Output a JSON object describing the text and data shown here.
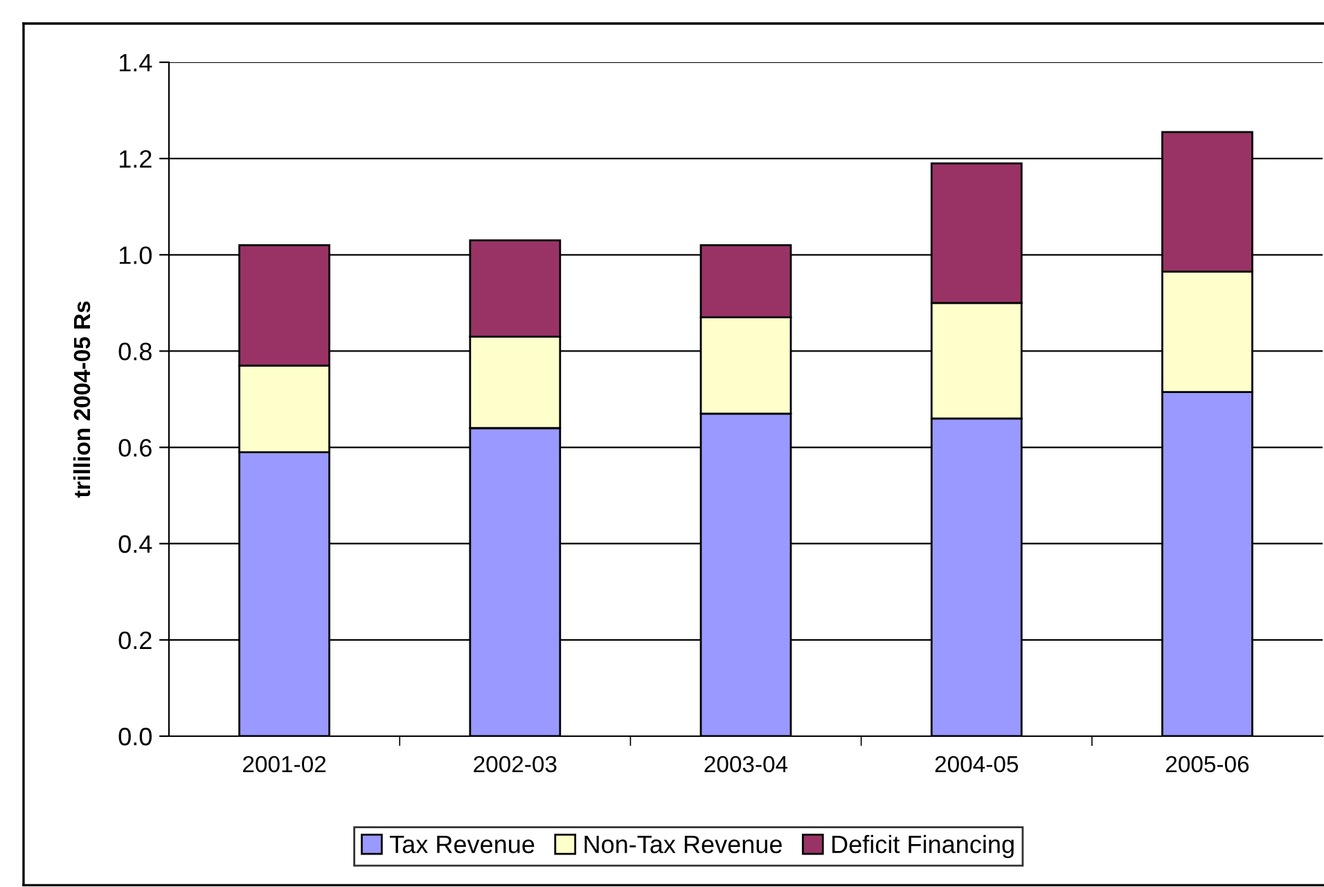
{
  "chart_data": {
    "type": "bar",
    "stacked": true,
    "ylabel": "trillion 2004-05 Rs",
    "categories": [
      "2001-02",
      "2002-03",
      "2003-04",
      "2004-05",
      "2005-06"
    ],
    "series": [
      {
        "name": "Tax Revenue",
        "color": "#9999ff",
        "values": [
          0.59,
          0.64,
          0.67,
          0.66,
          0.715
        ]
      },
      {
        "name": "Non-Tax Revenue",
        "color": "#ffffcc",
        "values": [
          0.18,
          0.19,
          0.2,
          0.24,
          0.25
        ]
      },
      {
        "name": "Deficit Financing",
        "color": "#993366",
        "values": [
          0.25,
          0.2,
          0.15,
          0.29,
          0.29
        ]
      }
    ],
    "ylim": [
      0,
      1.4
    ],
    "yticks": [
      {
        "value": 0,
        "label": "0.0"
      },
      {
        "value": 0.2,
        "label": "0.2"
      },
      {
        "value": 0.4,
        "label": "0.4"
      },
      {
        "value": 0.6,
        "label": "0.6"
      },
      {
        "value": 0.8,
        "label": "0.8"
      },
      {
        "value": 1.0,
        "label": "1.0"
      },
      {
        "value": 1.2,
        "label": "1.2"
      },
      {
        "value": 1.4,
        "label": "1.4"
      }
    ],
    "grid": "y",
    "legend": "bottom"
  }
}
